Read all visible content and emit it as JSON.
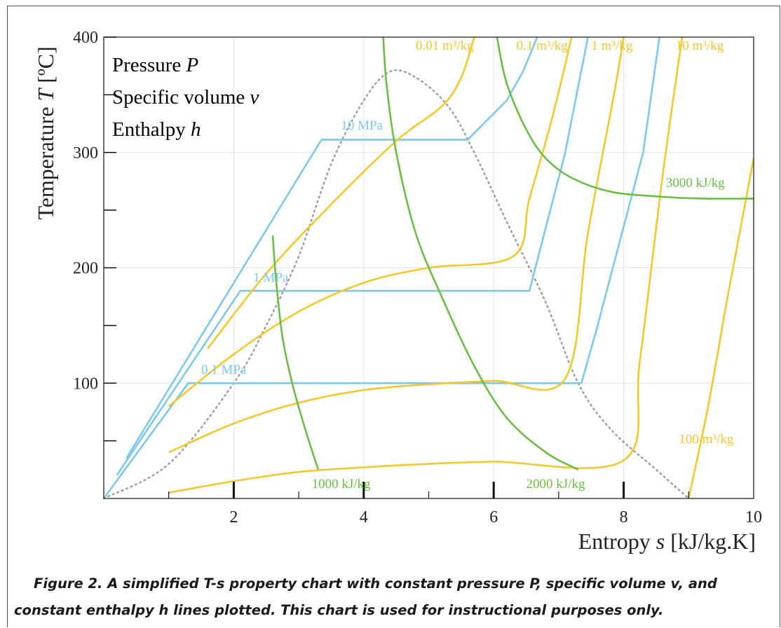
{
  "chart_data": {
    "type": "line",
    "xlabel_prefix": "Entropy ",
    "xlabel_var": "s",
    "xlabel_unit": " [kJ/kg.K]",
    "ylabel_prefix": "Temperature ",
    "ylabel_var": "T",
    "ylabel_unit": " [ºC]",
    "xlim": [
      0,
      10
    ],
    "ylim": [
      0,
      400
    ],
    "x_ticks": [
      "2",
      "4",
      "6",
      "8",
      "10"
    ],
    "y_ticks": [
      "100",
      "200",
      "300",
      "400"
    ],
    "grid": true,
    "legend_position": "top-left",
    "legend": [
      {
        "prefix": "Pressure ",
        "var": "P",
        "color": "#7ec8ec"
      },
      {
        "prefix": "Specific volume ",
        "var": "v",
        "color": "#f2c830"
      },
      {
        "prefix": "Enthalpy ",
        "var": "h",
        "color": "#6bbd45"
      }
    ],
    "saturation_dome": {
      "color": "#a0a0a0",
      "points": [
        [
          0,
          0
        ],
        [
          1,
          30
        ],
        [
          2,
          100
        ],
        [
          2.5,
          150
        ],
        [
          3,
          210
        ],
        [
          3.5,
          290
        ],
        [
          4,
          345
        ],
        [
          4.4,
          370
        ],
        [
          4.8,
          365
        ],
        [
          5.3,
          340
        ],
        [
          5.7,
          300
        ],
        [
          6.2,
          240
        ],
        [
          6.8,
          170
        ],
        [
          7.3,
          100
        ],
        [
          7.8,
          60
        ],
        [
          8.5,
          25
        ],
        [
          9,
          0
        ]
      ]
    },
    "series": [
      {
        "name": "0.1 MPa",
        "family": "pressure",
        "color": "#7ec8ec",
        "points": [
          [
            0,
            0
          ],
          [
            1.3,
            100
          ],
          [
            7.35,
            100
          ],
          [
            7.6,
            150
          ],
          [
            8.3,
            300
          ],
          [
            8.55,
            400
          ]
        ],
        "label_at": [
          1.5,
          108
        ]
      },
      {
        "name": "1 MPa",
        "family": "pressure",
        "color": "#7ec8ec",
        "points": [
          [
            0.2,
            20
          ],
          [
            2.1,
            180
          ],
          [
            6.55,
            180
          ],
          [
            7.1,
            300
          ],
          [
            7.45,
            400
          ]
        ],
        "label_at": [
          2.3,
          188
        ]
      },
      {
        "name": "10 MPa",
        "family": "pressure",
        "color": "#7ec8ec",
        "points": [
          [
            0.35,
            35
          ],
          [
            3.35,
            311
          ],
          [
            5.6,
            311
          ],
          [
            6.2,
            345
          ],
          [
            6.45,
            370
          ],
          [
            6.67,
            400
          ]
        ],
        "label_at": [
          3.65,
          320
        ]
      },
      {
        "name": "0.01 m³/kg",
        "family": "volume",
        "color": "#f2c830",
        "points": [
          [
            1.6,
            130
          ],
          [
            2.5,
            195
          ],
          [
            3.5,
            255
          ],
          [
            4.5,
            310
          ],
          [
            5.2,
            340
          ],
          [
            5.5,
            365
          ],
          [
            5.7,
            400
          ]
        ],
        "label_at": [
          4.8,
          389
        ]
      },
      {
        "name": "0.1 m³/kg",
        "family": "volume",
        "color": "#f2c830",
        "points": [
          [
            1.0,
            80
          ],
          [
            2.0,
            125
          ],
          [
            3.0,
            162
          ],
          [
            4.0,
            187
          ],
          [
            5.0,
            200
          ],
          [
            6.3,
            210
          ],
          [
            6.55,
            260
          ],
          [
            6.9,
            330
          ],
          [
            7.2,
            400
          ]
        ],
        "label_at": [
          6.35,
          389
        ]
      },
      {
        "name": "1 m³/kg",
        "family": "volume",
        "color": "#f2c830",
        "points": [
          [
            1.0,
            40
          ],
          [
            2.0,
            65
          ],
          [
            3.0,
            83
          ],
          [
            4.0,
            94
          ],
          [
            5.0,
            99
          ],
          [
            6.0,
            102
          ],
          [
            7.1,
            104
          ],
          [
            7.45,
            230
          ],
          [
            7.85,
            350
          ],
          [
            8.0,
            400
          ]
        ],
        "label_at": [
          7.5,
          389
        ]
      },
      {
        "name": "10 m³/kg",
        "family": "volume",
        "color": "#f2c830",
        "points": [
          [
            1.0,
            5
          ],
          [
            2.0,
            15
          ],
          [
            3.0,
            23
          ],
          [
            4.0,
            27
          ],
          [
            5.0,
            30
          ],
          [
            6.0,
            32
          ],
          [
            8.0,
            33
          ],
          [
            8.25,
            120
          ],
          [
            8.6,
            280
          ],
          [
            8.9,
            400
          ]
        ],
        "label_at": [
          8.8,
          389
        ]
      },
      {
        "name": "100 m³/kg",
        "family": "volume",
        "color": "#f2c830",
        "points": [
          [
            9.0,
            0
          ],
          [
            9.3,
            80
          ],
          [
            9.6,
            175
          ],
          [
            9.85,
            250
          ],
          [
            10.0,
            295
          ]
        ],
        "label_at": [
          8.85,
          48
        ]
      },
      {
        "name": "1000 kJ/kg",
        "family": "enthalpy",
        "color": "#6bbd45",
        "points": [
          [
            2.6,
            228
          ],
          [
            2.65,
            190
          ],
          [
            2.75,
            140
          ],
          [
            2.9,
            100
          ],
          [
            3.1,
            60
          ],
          [
            3.3,
            25
          ]
        ],
        "label_at": [
          3.2,
          9
        ]
      },
      {
        "name": "2000 kJ/kg",
        "family": "enthalpy",
        "color": "#6bbd45",
        "points": [
          [
            4.3,
            400
          ],
          [
            4.35,
            360
          ],
          [
            4.5,
            300
          ],
          [
            4.8,
            230
          ],
          [
            5.2,
            175
          ],
          [
            5.7,
            115
          ],
          [
            6.2,
            70
          ],
          [
            6.8,
            40
          ],
          [
            7.3,
            25
          ]
        ],
        "label_at": [
          6.5,
          9
        ]
      },
      {
        "name": "3000 kJ/kg",
        "family": "enthalpy",
        "color": "#6bbd45",
        "points": [
          [
            6.05,
            400
          ],
          [
            6.2,
            360
          ],
          [
            6.5,
            320
          ],
          [
            6.8,
            295
          ],
          [
            7.2,
            278
          ],
          [
            7.8,
            266
          ],
          [
            8.5,
            262
          ],
          [
            9.2,
            260
          ],
          [
            10.0,
            260
          ]
        ],
        "label_at": [
          8.65,
          270
        ]
      }
    ]
  },
  "caption": {
    "line1": "Figure 2. A simplified T-s property chart with constant pressure P, specific volume v, and",
    "line2": "constant enthalpy h lines plotted. This chart is used for instructional purposes only."
  }
}
